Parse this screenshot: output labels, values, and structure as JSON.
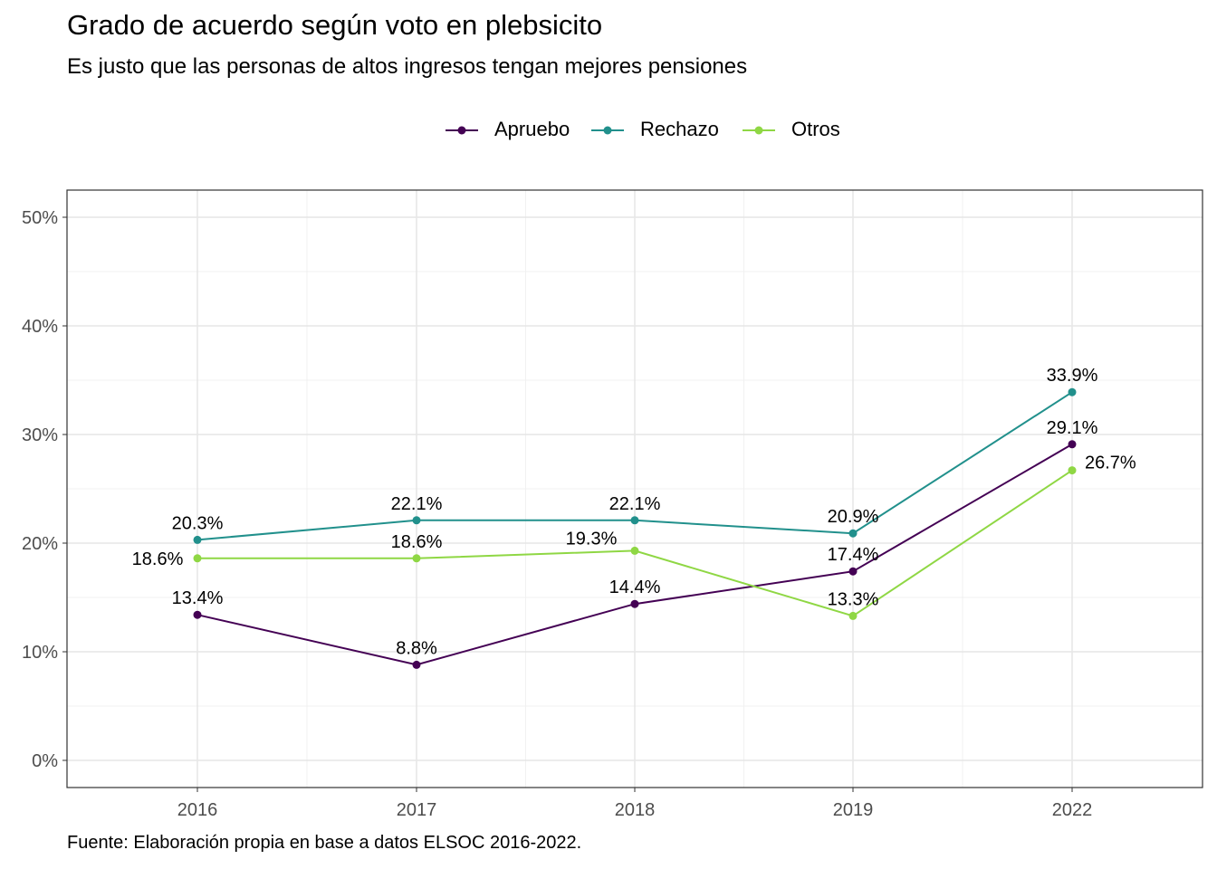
{
  "chart_data": {
    "type": "line",
    "title": "Grado de acuerdo según voto en plebsicito",
    "subtitle": "Es justo que las personas de altos ingresos tengan mejores pensiones",
    "caption": "Fuente: Elaboración propia en base a datos ELSOC 2016-2022.",
    "xlabel": "",
    "ylabel": "",
    "categories": [
      "2016",
      "2017",
      "2018",
      "2019",
      "2022"
    ],
    "ylim": [
      0,
      50
    ],
    "yticks": [
      0,
      10,
      20,
      30,
      40,
      50
    ],
    "ytick_labels": [
      "0%",
      "10%",
      "20%",
      "30%",
      "40%",
      "50%"
    ],
    "grid": true,
    "legend_position": "top",
    "series": [
      {
        "name": "Apruebo",
        "color": "#440154",
        "values": [
          13.4,
          8.8,
          14.4,
          17.4,
          29.1
        ],
        "labels": [
          "13.4%",
          "8.8%",
          "14.4%",
          "17.4%",
          "29.1%"
        ]
      },
      {
        "name": "Rechazo",
        "color": "#21908C",
        "values": [
          20.3,
          22.1,
          22.1,
          20.9,
          33.9
        ],
        "labels": [
          "20.3%",
          "22.1%",
          "22.1%",
          "20.9%",
          "33.9%"
        ]
      },
      {
        "name": "Otros",
        "color": "#8FD744",
        "values": [
          18.6,
          18.6,
          19.3,
          13.3,
          26.7
        ],
        "labels": [
          "18.6%",
          "18.6%",
          "19.3%",
          "13.3%",
          "26.7%"
        ]
      }
    ]
  }
}
